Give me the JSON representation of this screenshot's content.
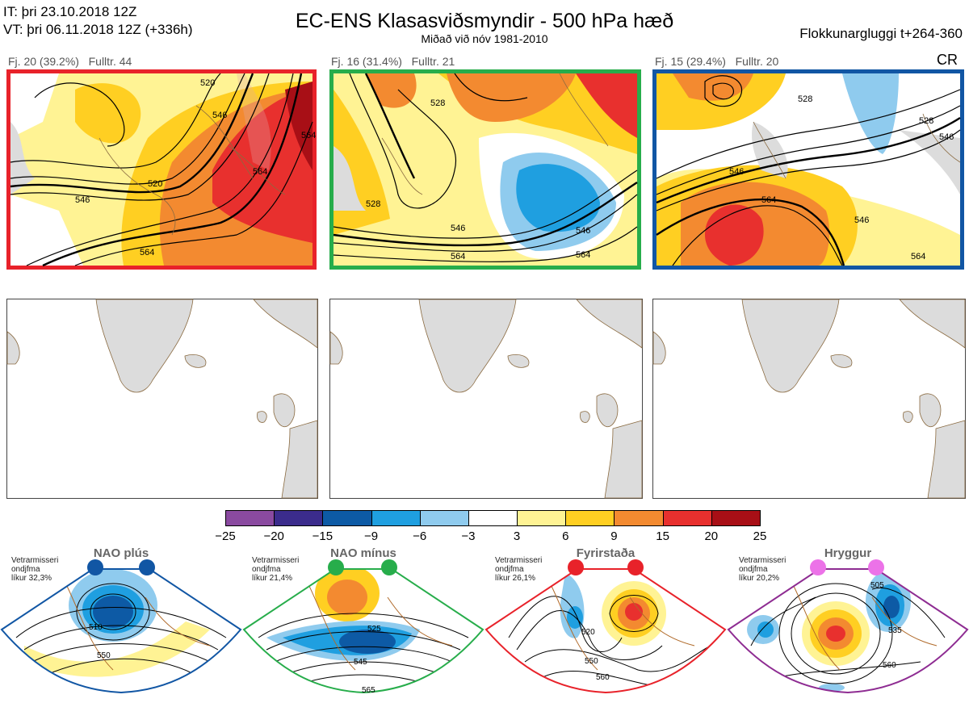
{
  "header": {
    "it_line": "IT: þri 23.10.2018 12Z",
    "vt_line": "VT: þri 06.11.2018 12Z  (+336h)",
    "title": "EC-ENS Klasasviðsmyndir - 500 hPa hæð",
    "subtitle": "Miðað við nóv 1981-2010",
    "window": "Flokkunargluggi t+264-360",
    "cr": "CR"
  },
  "clusters": [
    {
      "label": "Fj. 20 (39.2%)",
      "rep": "Fulltr. 44",
      "frame_color": "#e8222a",
      "contours": [
        "520",
        "546",
        "564",
        "564",
        "546",
        "520",
        "564"
      ]
    },
    {
      "label": "Fj. 16 (31.4%)",
      "rep": "Fulltr. 21",
      "frame_color": "#27ad4b",
      "contours": [
        "528",
        "528",
        "546",
        "564",
        "546",
        "564"
      ]
    },
    {
      "label": "Fj. 15 (29.4%)",
      "rep": "Fulltr. 20",
      "frame_color": "#1156a4",
      "contours": [
        "528",
        "546",
        "564",
        "546",
        "528",
        "546",
        "564"
      ]
    }
  ],
  "colorbar": {
    "ticks": [
      "−25",
      "−20",
      "−15",
      "−9",
      "−6",
      "−3",
      "3",
      "6",
      "9",
      "15",
      "20",
      "25"
    ],
    "colors": [
      "#8a4aa0",
      "#3b2c8c",
      "#0d5aa5",
      "#1f9fe0",
      "#8fcbee",
      "#ffffff",
      "#fff394",
      "#ffcf22",
      "#f38a30",
      "#e8302e",
      "#a80f16"
    ]
  },
  "regimes": [
    {
      "name": "NAO plús",
      "stat1": "Vetrarmisseri",
      "stat2": "ondjfma",
      "stat3": "líkur 32,3%",
      "color": "#1156a4",
      "contours": [
        "510",
        "550"
      ]
    },
    {
      "name": "NAO mínus",
      "stat1": "Vetrarmisseri",
      "stat2": "ondjfma",
      "stat3": "líkur 21,4%",
      "color": "#27ad4b",
      "contours": [
        "525",
        "545",
        "565"
      ]
    },
    {
      "name": "Fyrirstaða",
      "stat1": "Vetrarmisseri",
      "stat2": "ondjfma",
      "stat3": "líkur 26,1%",
      "color": "#e8222a",
      "contours": [
        "520",
        "550",
        "560"
      ]
    },
    {
      "name": "Hryggur",
      "stat1": "Vetrarmisseri",
      "stat2": "ondjfma",
      "stat3": "líkur 20,2%",
      "color": "#8e2c92",
      "contours": [
        "505",
        "535",
        "560"
      ]
    }
  ]
}
